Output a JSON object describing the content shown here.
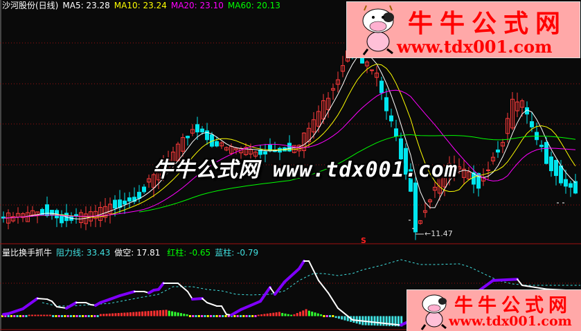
{
  "header": {
    "title": "沙河股份(日线)",
    "ma5": "MA5: 23.28",
    "ma10": "MA10: 23.24",
    "ma20": "MA20: 23.10",
    "ma60": "MA60: 20.13"
  },
  "indicator_header": {
    "name": "量比换手抓牛",
    "resistance": "阻力线: 33.43",
    "short": "做空: 17.81",
    "red_bar": "红柱: -0.65",
    "blue_bar": "蓝柱: -0.79"
  },
  "annotations": {
    "low_label": "11.47",
    "low_arrow": "←",
    "signal": "S"
  },
  "watermark": {
    "center": "牛牛公式网 www.tdx001.com",
    "logo_name": "牛牛公式网",
    "logo_url": "www.tdx001.com"
  },
  "colors": {
    "background": "#0a0a0a",
    "up_candle": "#ff3b3b",
    "down_candle": "#00e5ee",
    "ma5": "#ffffff",
    "ma10": "#ffff00",
    "ma20": "#ff00ff",
    "ma60": "#00ff00",
    "grid": "#a01010",
    "indicator_rise": "#8000ff",
    "indicator_fall": "#ffffff",
    "indicator_dashed": "#40e0e0",
    "logo_bg": "#ffa8a8",
    "logo_text": "#ff0000"
  },
  "chart_data": [
    {
      "type": "candlestick",
      "bars": 119,
      "ylim": [
        10.8,
        38.7
      ],
      "grid": true,
      "moving_averages": [
        5,
        10,
        20,
        60
      ],
      "close_keypoints": [
        [
          0,
          13.4
        ],
        [
          5,
          13.8
        ],
        [
          8,
          14.2
        ],
        [
          13,
          13.1
        ],
        [
          18,
          13.8
        ],
        [
          22,
          14.7
        ],
        [
          28,
          16.3
        ],
        [
          32,
          18.9
        ],
        [
          36,
          21.8
        ],
        [
          39,
          24.3
        ],
        [
          41,
          23.9
        ],
        [
          43,
          22.6
        ],
        [
          46,
          21.8
        ],
        [
          50,
          21.8
        ],
        [
          53,
          21.4
        ],
        [
          56,
          21.8
        ],
        [
          61,
          22.2
        ],
        [
          63,
          24.3
        ],
        [
          66,
          27.3
        ],
        [
          69,
          30.6
        ],
        [
          71,
          34.0
        ],
        [
          73,
          34.0
        ],
        [
          74,
          32.7
        ],
        [
          77,
          30.6
        ],
        [
          79,
          26.4
        ],
        [
          81,
          23.1
        ],
        [
          84,
          17.2
        ],
        [
          85,
          12.1
        ],
        [
          87,
          14.7
        ],
        [
          89,
          17.2
        ],
        [
          92,
          19.7
        ],
        [
          95,
          18.9
        ],
        [
          98,
          17.6
        ],
        [
          100,
          19.7
        ],
        [
          103,
          23.1
        ],
        [
          105,
          27.3
        ],
        [
          107,
          27.3
        ],
        [
          109,
          23.9
        ],
        [
          112,
          20.6
        ],
        [
          115,
          18.0
        ],
        [
          118,
          16.8
        ]
      ],
      "low_marker": {
        "bar": 85,
        "price": 11.47
      }
    },
    {
      "type": "line",
      "name": "量比换手抓牛",
      "ylim": [
        -15,
        65
      ],
      "grid": true,
      "main_line": [
        [
          0,
          1.9
        ],
        [
          1,
          2.7
        ],
        [
          4,
          8.1
        ],
        [
          7,
          19.6
        ],
        [
          9,
          18.8
        ],
        [
          10,
          16.5
        ],
        [
          11,
          10.4
        ],
        [
          13,
          8.8
        ],
        [
          14,
          11.9
        ],
        [
          15,
          15
        ],
        [
          17,
          15
        ],
        [
          18,
          12.7
        ],
        [
          19,
          11.9
        ],
        [
          20,
          15
        ],
        [
          22,
          18.8
        ],
        [
          24,
          22.7
        ],
        [
          27,
          27.3
        ],
        [
          29,
          27.3
        ],
        [
          30,
          25.8
        ],
        [
          31,
          28.8
        ],
        [
          32,
          29.6
        ],
        [
          33,
          36.5
        ],
        [
          36,
          36.5
        ],
        [
          38,
          27.3
        ],
        [
          39,
          18.8
        ],
        [
          41,
          19.6
        ],
        [
          42,
          15
        ],
        [
          44,
          11.2
        ],
        [
          45,
          11.2
        ],
        [
          46,
          1.9
        ],
        [
          47,
          1.2
        ],
        [
          49,
          7.3
        ],
        [
          51,
          11.9
        ],
        [
          53,
          16.5
        ],
        [
          55,
          31.9
        ],
        [
          56,
          24.2
        ],
        [
          58,
          38.1
        ],
        [
          61,
          52.7
        ],
        [
          62,
          61.2
        ],
        [
          63,
          61.2
        ],
        [
          65,
          39.6
        ],
        [
          67,
          25.8
        ],
        [
          69,
          8.8
        ],
        [
          72,
          -4.2
        ],
        [
          82,
          -10
        ],
        [
          88,
          5
        ],
        [
          96,
          20
        ],
        [
          101,
          39.6
        ],
        [
          106,
          41
        ],
        [
          107,
          34.2
        ],
        [
          112,
          30
        ],
        [
          119,
          28
        ]
      ],
      "dashed_line": [
        [
          8,
          15
        ],
        [
          11,
          11.2
        ],
        [
          14,
          11.2
        ],
        [
          18,
          12.7
        ],
        [
          22,
          14.2
        ],
        [
          28,
          20.4
        ],
        [
          32,
          24.2
        ],
        [
          35,
          32.7
        ],
        [
          39,
          32.7
        ],
        [
          42,
          29.6
        ],
        [
          45,
          28.1
        ],
        [
          48,
          24.2
        ],
        [
          51,
          23.5
        ],
        [
          55,
          24.2
        ],
        [
          58,
          28.1
        ],
        [
          61,
          39.6
        ],
        [
          63,
          45
        ],
        [
          64,
          47.3
        ],
        [
          66,
          47.3
        ],
        [
          69,
          45
        ],
        [
          72,
          47.3
        ],
        [
          74,
          51.2
        ],
        [
          78,
          56.5
        ],
        [
          82,
          62.7
        ],
        [
          86,
          57.3
        ],
        [
          89,
          57.3
        ],
        [
          94,
          58.1
        ],
        [
          96,
          55
        ],
        [
          99,
          47.3
        ],
        [
          102,
          39.6
        ],
        [
          105,
          35.8
        ],
        [
          108,
          34.2
        ],
        [
          119,
          34.2
        ]
      ],
      "histogram_keypoints": [
        [
          0,
          0.4
        ],
        [
          8,
          0.4
        ],
        [
          9,
          1.5
        ],
        [
          16,
          1.5
        ],
        [
          17,
          0.4
        ],
        [
          32,
          0.4
        ],
        [
          33,
          2.3
        ],
        [
          42,
          4
        ],
        [
          55,
          7
        ],
        [
          56,
          6
        ],
        [
          62,
          2
        ],
        [
          63,
          0.4
        ],
        [
          76,
          0.4
        ],
        [
          77,
          -1
        ],
        [
          79,
          0.4
        ],
        [
          85,
          0.4
        ],
        [
          86,
          1.5
        ],
        [
          93,
          4.6
        ],
        [
          94,
          3.5
        ],
        [
          97,
          1.5
        ],
        [
          98,
          2
        ],
        [
          102,
          7.7
        ],
        [
          103,
          6
        ],
        [
          107,
          2
        ],
        [
          108,
          0.4
        ],
        [
          111,
          0.4
        ],
        [
          112,
          -2
        ],
        [
          121,
          -10
        ],
        [
          134,
          -11.5
        ]
      ]
    }
  ]
}
